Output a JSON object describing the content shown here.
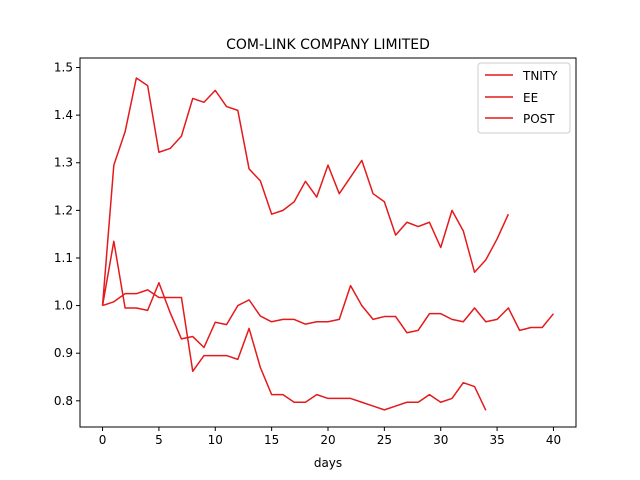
{
  "chart_data": {
    "type": "line",
    "title": "COM-LINK COMPANY LIMITED",
    "xlabel": "days",
    "ylabel": "",
    "xlim": [
      -2,
      42
    ],
    "ylim": [
      0.745,
      1.52
    ],
    "xticks": [
      0,
      5,
      10,
      15,
      20,
      25,
      30,
      35,
      40
    ],
    "yticks": [
      0.8,
      0.9,
      1.0,
      1.1,
      1.2,
      1.3,
      1.4,
      1.5
    ],
    "ytick_labels": [
      "0.8",
      "0.9",
      "1.0",
      "1.1",
      "1.2",
      "1.3",
      "1.4",
      "1.5"
    ],
    "grid": false,
    "legend_position": "top-right",
    "series": [
      {
        "name": "TNITY",
        "color": "#e41a1c",
        "x": [
          0,
          1,
          2,
          3,
          4,
          5,
          6,
          7,
          8,
          9,
          10,
          11,
          12,
          13,
          14,
          15,
          16,
          17,
          18,
          19,
          20,
          21,
          22,
          23,
          24,
          25,
          26,
          27,
          28,
          29,
          30,
          31,
          32,
          33,
          34,
          35,
          36
        ],
        "values": [
          1.0,
          1.295,
          1.365,
          1.478,
          1.462,
          1.322,
          1.33,
          1.356,
          1.435,
          1.427,
          1.452,
          1.418,
          1.41,
          1.287,
          1.262,
          1.192,
          1.2,
          1.218,
          1.261,
          1.228,
          1.295,
          1.235,
          1.27,
          1.305,
          1.235,
          1.218,
          1.148,
          1.175,
          1.166,
          1.175,
          1.122,
          1.2,
          1.157,
          1.07,
          1.096,
          1.14,
          1.192
        ]
      },
      {
        "name": "EE",
        "color": "#e41a1c",
        "x": [
          0,
          1,
          2,
          3,
          4,
          5,
          6,
          7,
          8,
          9,
          10,
          11,
          12,
          13,
          14,
          15,
          16,
          17,
          18,
          19,
          20,
          21,
          22,
          23,
          24,
          25,
          26,
          27,
          28,
          29,
          30,
          31,
          32,
          33,
          34,
          35,
          36,
          37,
          38,
          39,
          40
        ],
        "values": [
          1.0,
          1.135,
          0.995,
          0.995,
          0.99,
          1.048,
          0.985,
          0.93,
          0.935,
          0.912,
          0.965,
          0.96,
          1.0,
          1.012,
          0.978,
          0.966,
          0.971,
          0.971,
          0.961,
          0.966,
          0.966,
          0.971,
          1.042,
          1.0,
          0.971,
          0.977,
          0.977,
          0.943,
          0.948,
          0.983,
          0.983,
          0.971,
          0.966,
          0.995,
          0.966,
          0.971,
          0.995,
          0.948,
          0.954,
          0.954,
          0.983
        ]
      },
      {
        "name": "POST",
        "color": "#e41a1c",
        "x": [
          0,
          1,
          2,
          3,
          4,
          5,
          6,
          7,
          8,
          9,
          10,
          11,
          12,
          13,
          14,
          15,
          16,
          17,
          18,
          19,
          20,
          21,
          22,
          23,
          24,
          25,
          26,
          27,
          28,
          29,
          30,
          31,
          32,
          33,
          34
        ],
        "values": [
          1.0,
          1.008,
          1.025,
          1.025,
          1.033,
          1.017,
          1.017,
          1.017,
          0.862,
          0.895,
          0.895,
          0.895,
          0.887,
          0.952,
          0.87,
          0.813,
          0.813,
          0.797,
          0.797,
          0.813,
          0.805,
          0.805,
          0.805,
          0.797,
          0.789,
          0.781,
          0.789,
          0.797,
          0.797,
          0.813,
          0.797,
          0.805,
          0.838,
          0.83,
          0.78
        ]
      }
    ]
  }
}
